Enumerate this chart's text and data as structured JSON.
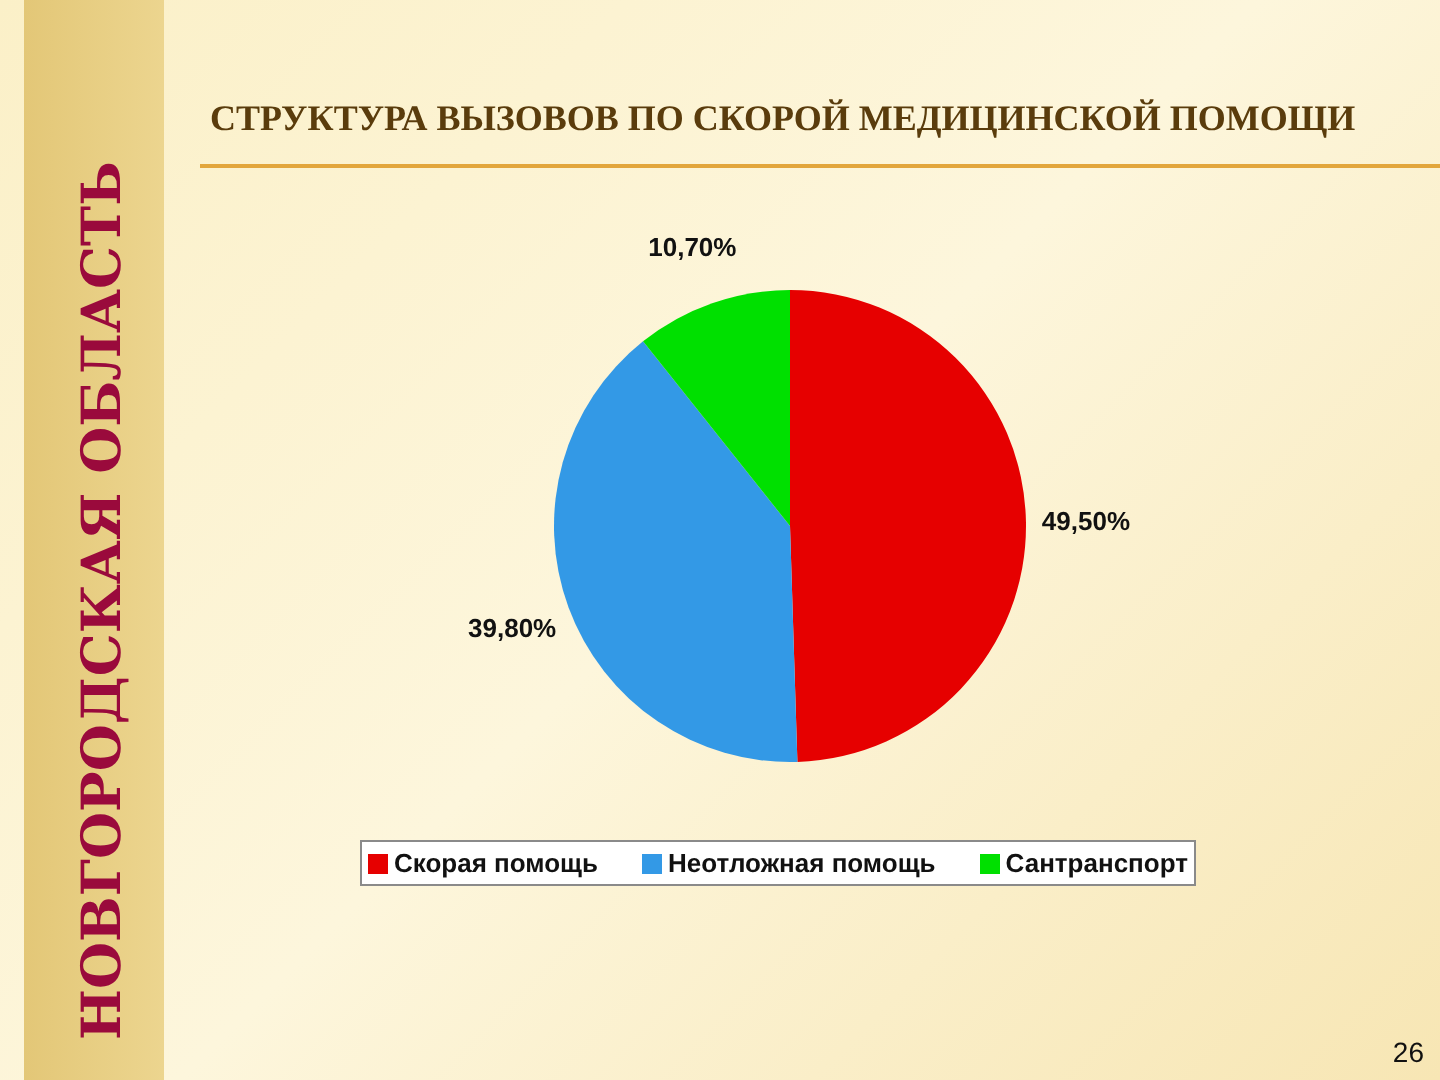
{
  "chart_data": {
    "type": "pie",
    "title": "СТРУКТУРА ВЫЗОВОВ ПО СКОРОЙ МЕДИЦИНСКОЙ ПОМОЩИ",
    "categories": [
      "Скорая помощь",
      "Неотложная помощь",
      "Сантранспорт"
    ],
    "values": [
      49.5,
      39.8,
      10.7
    ],
    "value_labels": [
      "49,50%",
      "39,80%",
      "10,70%"
    ],
    "colors": [
      "#e60000",
      "#3399e6",
      "#00e000"
    ],
    "legend": "bottom",
    "annotations": [
      "НОВГОРОДСКАЯ ОБЛАСТЬ",
      "26"
    ]
  }
}
